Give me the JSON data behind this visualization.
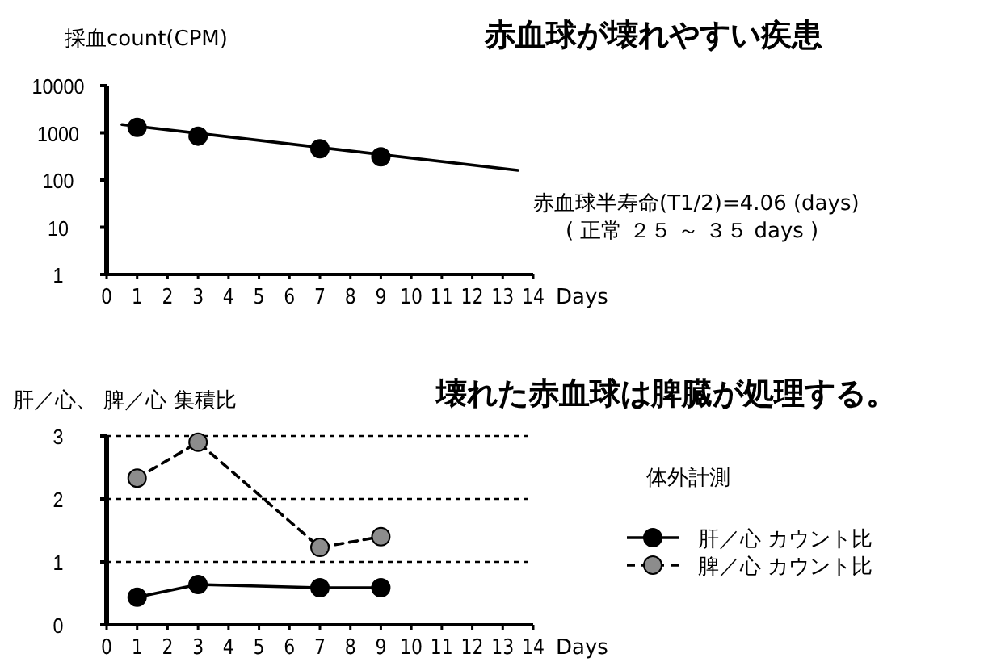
{
  "chart_data": [
    {
      "type": "scatter",
      "title": "赤血球が壊れやすい疾患",
      "ylabel": "採血count(CPM)",
      "xlabel": "Days",
      "log": true,
      "xlim": [
        0,
        14
      ],
      "xticks": [
        0,
        1,
        2,
        3,
        4,
        5,
        6,
        7,
        8,
        9,
        10,
        11,
        12,
        13,
        14
      ],
      "ylim": [
        1,
        10000
      ],
      "yticks": [
        1,
        10,
        100,
        1000,
        10000
      ],
      "marker": "circle",
      "x": [
        1,
        3,
        7,
        9
      ],
      "series": [
        {
          "color": "#000000",
          "values": [
            1300,
            850,
            460,
            310
          ]
        },
        {
          "type": "line",
          "marker": "none",
          "color": "#000000",
          "x": [
            0.5,
            13.5
          ],
          "values": [
            1500,
            160
          ]
        }
      ],
      "annotations": [
        "赤血球半寿命(T1/2)=4.06 (days)",
        "( 正常 ２５ ～ ３５ days )"
      ]
    },
    {
      "type": "line",
      "title": "壊れた赤血球は脾臓が処理する。",
      "ylabel": "肝／心、 脾／心 集積比",
      "xlabel": "Days",
      "xlim": [
        0,
        14
      ],
      "xticks": [
        0,
        1,
        2,
        3,
        4,
        5,
        6,
        7,
        8,
        9,
        10,
        11,
        12,
        13,
        14
      ],
      "ylim": [
        0,
        3
      ],
      "yticks": [
        0,
        1,
        2,
        3
      ],
      "grid": "y",
      "legend": "right",
      "legend_title": "体外計測",
      "marker": "circle",
      "x": [
        1,
        3,
        7,
        9
      ],
      "series": [
        {
          "name": "肝／心 カウント比",
          "color": "#000000",
          "line_style": "solid",
          "values": [
            0.44,
            0.64,
            0.59,
            0.59
          ]
        },
        {
          "name": "脾／心 カウント比",
          "color": "#8c8c8c",
          "line_style": "dashed",
          "values": [
            2.33,
            2.9,
            1.23,
            1.4
          ]
        }
      ]
    }
  ]
}
